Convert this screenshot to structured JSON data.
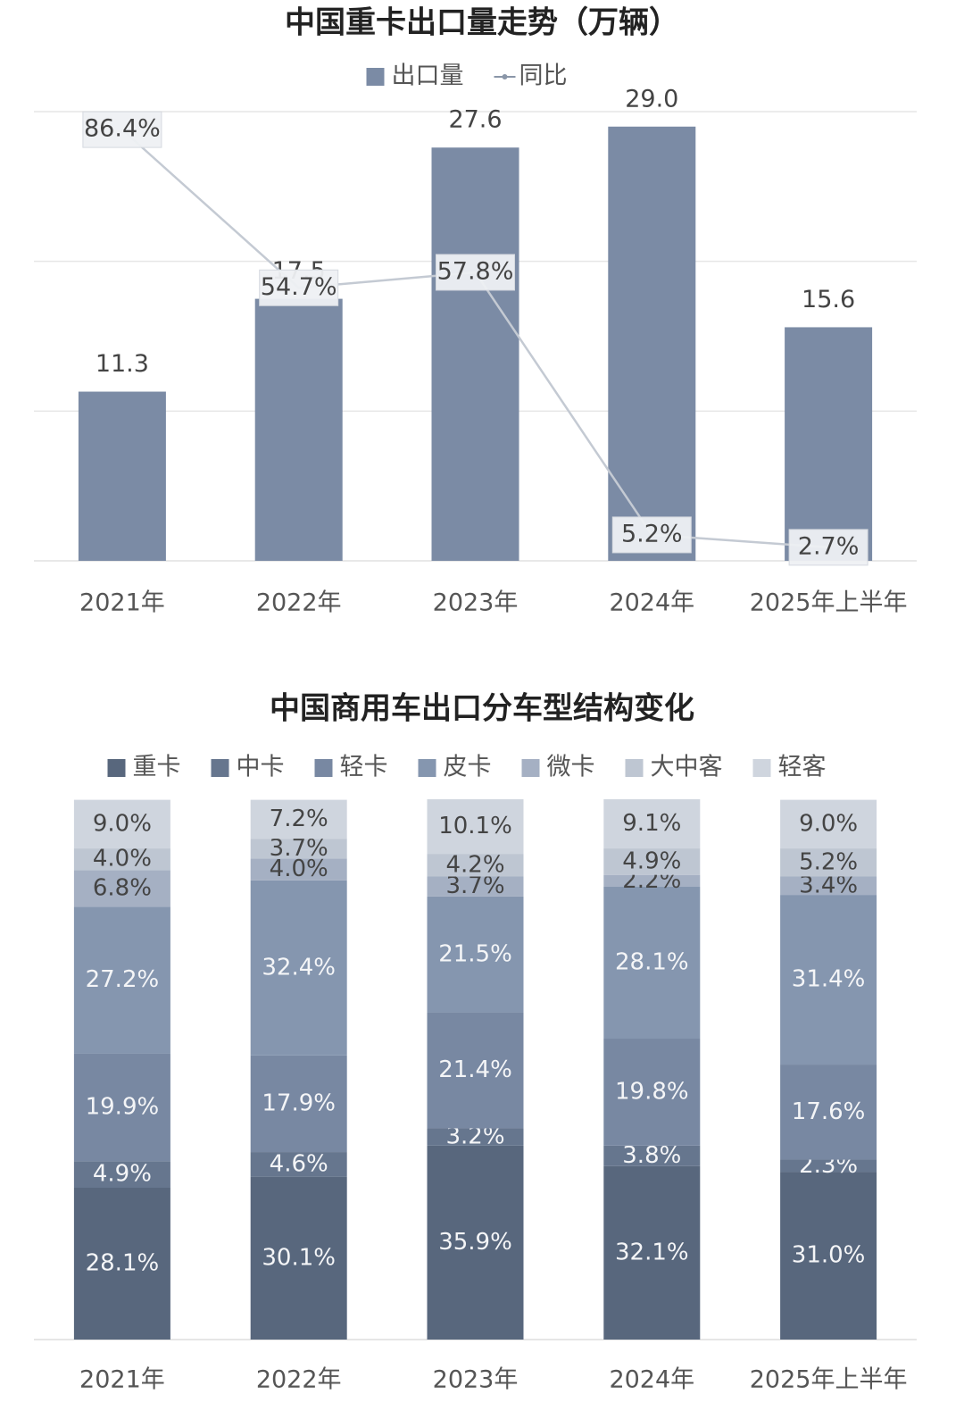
{
  "chart_data": [
    {
      "type": "bar_line",
      "title": "中国重卡出口量走势（万辆）",
      "categories": [
        "2021年",
        "2022年",
        "2023年",
        "2024年",
        "2025年上半年"
      ],
      "series": [
        {
          "name": "出口量",
          "color": "#7b8ba5",
          "values": [
            11.3,
            17.5,
            27.6,
            29.0,
            15.6
          ],
          "value_labels": [
            "11.3",
            "17.5",
            "27.6",
            "29.0",
            "15.6"
          ]
        },
        {
          "name": "同比",
          "color": "#c4cad3",
          "axis": "y2",
          "values": [
            86.4,
            54.7,
            57.8,
            5.2,
            2.7
          ],
          "value_labels": [
            "86.4%",
            "54.7%",
            "57.8%",
            "5.2%",
            "2.7%"
          ]
        }
      ],
      "ylim": [
        0,
        30
      ],
      "yticks": [
        0,
        10,
        20,
        30
      ],
      "y2lim": [
        0,
        90
      ],
      "grid": true
    },
    {
      "type": "stacked_bar",
      "title": "中国商用车出口分车型结构变化",
      "categories": [
        "2021年",
        "2022年",
        "2023年",
        "2024年",
        "2025年上半年"
      ],
      "series": [
        {
          "name": "重卡",
          "color": "#58677d",
          "values": [
            28.1,
            30.1,
            35.9,
            32.1,
            31.0
          ],
          "value_labels": [
            "28.1%",
            "30.1%",
            "35.9%",
            "32.1%",
            "31.0%"
          ]
        },
        {
          "name": "中卡",
          "color": "#66768e",
          "values": [
            4.9,
            4.6,
            3.2,
            3.8,
            2.3
          ],
          "value_labels": [
            "4.9%",
            "4.6%",
            "3.2%",
            "3.8%",
            "2.3%"
          ]
        },
        {
          "name": "轻卡",
          "color": "#7888a2",
          "values": [
            19.9,
            17.9,
            21.4,
            19.8,
            17.6
          ],
          "value_labels": [
            "19.9%",
            "17.9%",
            "21.4%",
            "19.8%",
            "17.6%"
          ]
        },
        {
          "name": "皮卡",
          "color": "#8596af",
          "values": [
            27.2,
            32.4,
            21.5,
            28.1,
            31.4
          ],
          "value_labels": [
            "27.2%",
            "32.4%",
            "21.5%",
            "28.1%",
            "31.4%"
          ]
        },
        {
          "name": "微卡",
          "color": "#a5b0c3",
          "values": [
            6.8,
            4.0,
            3.7,
            2.2,
            3.4
          ],
          "value_labels": [
            "6.8%",
            "4.0%",
            "3.7%",
            "2.2%",
            "3.4%"
          ]
        },
        {
          "name": "大中客",
          "color": "#bec6d2",
          "values": [
            4.0,
            3.7,
            4.2,
            4.9,
            5.2
          ],
          "value_labels": [
            "4.0%",
            "3.7%",
            "4.2%",
            "4.9%",
            "5.2%"
          ]
        },
        {
          "name": "轻客",
          "color": "#cfd5de",
          "values": [
            9.0,
            7.2,
            10.1,
            9.1,
            9.0
          ],
          "value_labels": [
            "9.0%",
            "7.2%",
            "10.1%",
            "9.1%",
            "9.0%"
          ]
        }
      ],
      "ylim": [
        0,
        100
      ]
    }
  ]
}
